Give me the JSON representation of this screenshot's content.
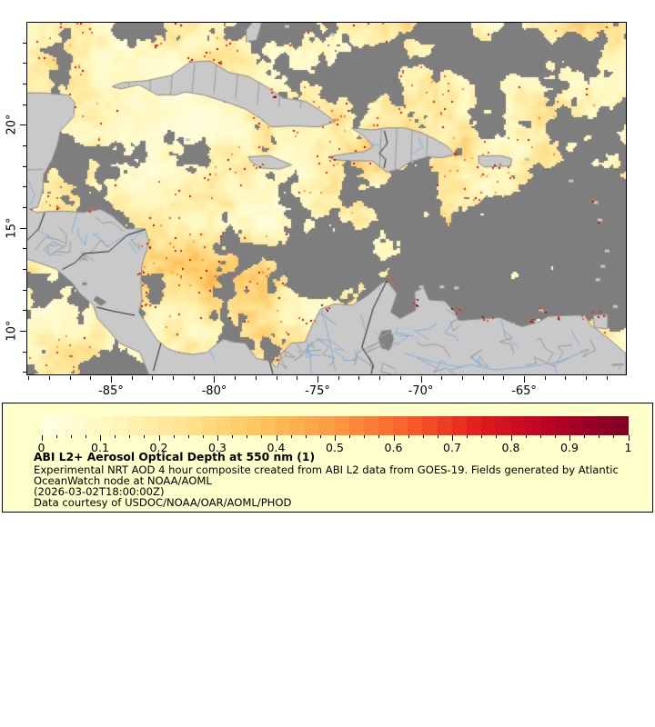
{
  "map": {
    "extent": {
      "lon_min": -89.05,
      "lon_max": -60.07,
      "lat_min": 7.88,
      "lat_max": 24.96
    },
    "x_axis": {
      "major_ticks": [
        {
          "value": -85,
          "label": "-85°"
        },
        {
          "value": -80,
          "label": "-80°"
        },
        {
          "value": -75,
          "label": "-75°"
        },
        {
          "value": -70,
          "label": "-70°"
        },
        {
          "value": -65,
          "label": "-65°"
        }
      ],
      "minor_step_deg": 1
    },
    "y_axis": {
      "major_ticks": [
        {
          "value": 10,
          "label": "10°"
        },
        {
          "value": 15,
          "label": "15°"
        },
        {
          "value": 20,
          "label": "20°"
        }
      ],
      "minor_step_deg": 1
    },
    "colors": {
      "land": "#C9C9C9",
      "coastline": "#8A8A8A",
      "state_border": "#9A9A9A",
      "national_border": "#222222",
      "river": "#85AFDB",
      "cloud_nodata": "#7E7E7E",
      "lake": "#828282",
      "frame": "#000000"
    }
  },
  "legend": {
    "background": "#FFFFCC",
    "border": "#000000",
    "colorbar": {
      "min": 0,
      "max": 1,
      "segments": 40,
      "minor_tick_step": 0.025,
      "tick_labels": [
        "0",
        "0.1",
        "0.2",
        "0.3",
        "0.4",
        "0.5",
        "0.6",
        "0.7",
        "0.8",
        "0.9",
        "1"
      ],
      "palette": [
        "#FFFFE5",
        "#FFF7BC",
        "#FEE28F",
        "#FEC45D",
        "#FD9A42",
        "#F9602B",
        "#E31A1C",
        "#B50026",
        "#7D0023"
      ]
    },
    "title": "ABI L2+ Aerosol Optical Depth at 550 nm (1)",
    "description_line1": "Experimental NRT AOD 4 hour composite created from ABI L2 data from GOES-19. Fields generated by Atlantic",
    "description_line2": "OceanWatch node at NOAA/AOML",
    "timestamp": "(2026-03-02T18:00:00Z)",
    "courtesy": "Data courtesy of USDOC/NOAA/OAR/AOML/PHOD"
  }
}
